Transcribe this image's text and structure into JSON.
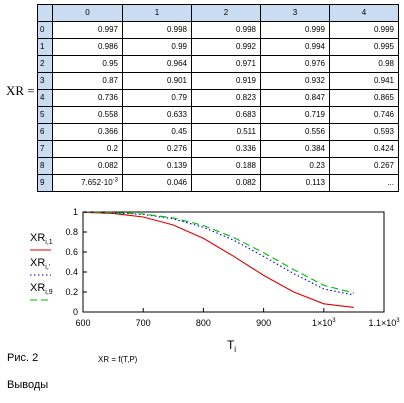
{
  "matrix": {
    "label": "XR =",
    "columns": [
      "0",
      "1",
      "2",
      "3",
      "4"
    ],
    "rows": [
      {
        "index": "0",
        "values": [
          "0.997",
          "0.998",
          "0.998",
          "0.999",
          "0.999"
        ]
      },
      {
        "index": "1",
        "values": [
          "0.986",
          "0.99",
          "0.992",
          "0.994",
          "0.995"
        ]
      },
      {
        "index": "2",
        "values": [
          "0.95",
          "0.964",
          "0.971",
          "0.976",
          "0.98"
        ]
      },
      {
        "index": "3",
        "values": [
          "0.87",
          "0.901",
          "0.919",
          "0.932",
          "0.941"
        ]
      },
      {
        "index": "4",
        "values": [
          "0.736",
          "0.79",
          "0.823",
          "0.847",
          "0.865"
        ]
      },
      {
        "index": "5",
        "values": [
          "0.558",
          "0.633",
          "0.683",
          "0.719",
          "0.746"
        ]
      },
      {
        "index": "6",
        "values": [
          "0.366",
          "0.45",
          "0.511",
          "0.556",
          "0.593"
        ]
      },
      {
        "index": "7",
        "values": [
          "0.2",
          "0.276",
          "0.336",
          "0.384",
          "0.424"
        ]
      },
      {
        "index": "8",
        "values": [
          "0.082",
          "0.139",
          "0.188",
          "0.23",
          "0.267"
        ]
      },
      {
        "index": "9",
        "values": [
          "7.652·10-3",
          "0.046",
          "0.082",
          "0.113",
          "..."
        ]
      }
    ],
    "special_cell": {
      "mantissa": "7.652·10",
      "exponent": "-3"
    }
  },
  "chart_data": {
    "type": "line",
    "xlabel": "T",
    "xlabel_subscript": "i",
    "xlim": [
      600,
      1100
    ],
    "ylim": [
      0,
      1
    ],
    "x_ticks": [
      {
        "value": 600,
        "label": "600"
      },
      {
        "value": 700,
        "label": "700"
      },
      {
        "value": 800,
        "label": "800"
      },
      {
        "value": 900,
        "label": "900"
      },
      {
        "value": 1000,
        "label": "1×10",
        "sup": "3"
      },
      {
        "value": 1100,
        "label": "1.1×10",
        "sup": "3"
      }
    ],
    "y_ticks": [
      {
        "value": 0,
        "label": "0"
      },
      {
        "value": 0.2,
        "label": "0.2"
      },
      {
        "value": 0.4,
        "label": "0.4"
      },
      {
        "value": 0.6,
        "label": "0.6"
      },
      {
        "value": 0.8,
        "label": "0.8"
      },
      {
        "value": 1,
        "label": "1"
      }
    ],
    "series": [
      {
        "name": "XR",
        "subscript": "i,1",
        "color": "#e00000",
        "dash": "solid",
        "x": [
          600,
          650,
          700,
          750,
          800,
          850,
          900,
          950,
          1000,
          1050
        ],
        "y": [
          0.997,
          0.986,
          0.95,
          0.87,
          0.736,
          0.558,
          0.366,
          0.2,
          0.082,
          0.046
        ]
      },
      {
        "name": "XR",
        "subscript": "i,'",
        "color": "#0000cc",
        "dash": "dotted",
        "x": [
          600,
          650,
          700,
          750,
          800,
          850,
          900,
          950,
          1000,
          1050
        ],
        "y": [
          0.998,
          0.992,
          0.976,
          0.932,
          0.847,
          0.719,
          0.556,
          0.384,
          0.23,
          0.17
        ]
      },
      {
        "name": "XR",
        "subscript": "i,9",
        "color": "#00bb00",
        "dash": "dashed",
        "x": [
          600,
          650,
          700,
          750,
          800,
          850,
          900,
          950,
          1000,
          1050
        ],
        "y": [
          0.999,
          0.995,
          0.98,
          0.941,
          0.865,
          0.746,
          0.593,
          0.424,
          0.267,
          0.19
        ]
      }
    ]
  },
  "caption": {
    "figure": "Рис. 2",
    "formula": "XR = f(T,P)"
  },
  "conclusions": "Выводы"
}
